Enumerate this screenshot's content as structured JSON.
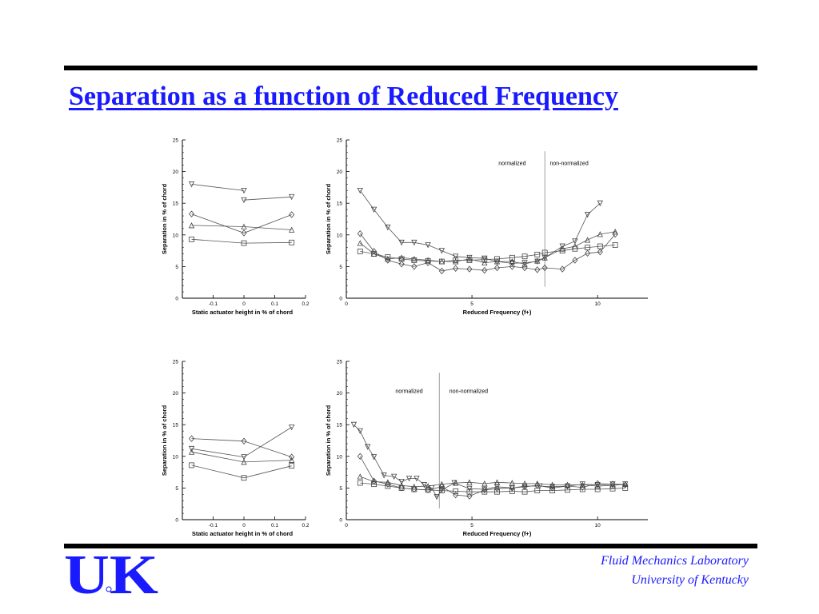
{
  "slide": {
    "title": "Separation as a function of Reduced Frequency",
    "footer_line1": "Fluid Mechanics Laboratory",
    "footer_line2": "University of Kentucky",
    "logo_text": "UK",
    "colors": {
      "title": "#1a1aff",
      "rule": "#000000",
      "logo": "#1a1aff"
    }
  },
  "chart_data": [
    {
      "id": "top-left",
      "type": "line",
      "xlabel": "Static actuator height in % of chord",
      "ylabel": "Separation in % of chord",
      "xlim": [
        -0.2,
        0.2
      ],
      "ylim": [
        0,
        25
      ],
      "xticks": [
        -0.1,
        0,
        0.1,
        0.2
      ],
      "yticks": [
        0,
        5,
        10,
        15,
        20,
        25
      ],
      "series": [
        {
          "marker": "triangle-down",
          "points": [
            [
              -0.17,
              18
            ],
            [
              0,
              17
            ]
          ]
        },
        {
          "marker": "triangle-down",
          "points": [
            [
              0,
              15.5
            ],
            [
              0.155,
              16
            ]
          ]
        },
        {
          "marker": "diamond",
          "points": [
            [
              -0.17,
              13.3
            ],
            [
              0,
              10.3
            ],
            [
              0.155,
              13.2
            ]
          ]
        },
        {
          "marker": "triangle-up",
          "points": [
            [
              -0.17,
              11.5
            ],
            [
              0,
              11.3
            ],
            [
              0.155,
              10.8
            ]
          ]
        },
        {
          "marker": "square",
          "points": [
            [
              -0.17,
              9.3
            ],
            [
              0,
              8.7
            ],
            [
              0.155,
              8.8
            ]
          ]
        }
      ]
    },
    {
      "id": "top-right",
      "type": "line",
      "xlabel": "Reduced Frequency (f+)",
      "ylabel": "Separation in % of chord",
      "xlim": [
        0,
        12
      ],
      "ylim": [
        0,
        25
      ],
      "xticks": [
        0,
        5,
        10
      ],
      "yticks": [
        0,
        5,
        10,
        15,
        20,
        25
      ],
      "annotations": [
        "normalized",
        "non-normalized"
      ],
      "divider_x": 7.9,
      "series": [
        {
          "marker": "triangle-down",
          "points": [
            [
              0.55,
              17
            ],
            [
              1.1,
              14
            ],
            [
              1.65,
              11.2
            ],
            [
              2.2,
              8.8
            ],
            [
              2.7,
              8.8
            ],
            [
              3.25,
              8.4
            ],
            [
              3.8,
              7.5
            ],
            [
              4.35,
              6.6
            ],
            [
              4.9,
              6.4
            ],
            [
              5.5,
              6.3
            ],
            [
              6.0,
              5.8
            ],
            [
              6.6,
              5.5
            ],
            [
              7.1,
              5.6
            ],
            [
              7.6,
              5.8
            ],
            [
              7.9,
              6.4
            ],
            [
              8.6,
              8.2
            ],
            [
              9.1,
              9.0
            ],
            [
              9.6,
              13.2
            ],
            [
              10.1,
              15
            ]
          ]
        },
        {
          "marker": "triangle-up",
          "points": [
            [
              0.55,
              8.7
            ],
            [
              1.1,
              7.0
            ],
            [
              1.65,
              6.2
            ],
            [
              2.2,
              6.4
            ],
            [
              2.7,
              6.2
            ],
            [
              3.25,
              6.0
            ],
            [
              3.8,
              5.8
            ],
            [
              4.35,
              5.8
            ],
            [
              4.9,
              6.2
            ],
            [
              5.5,
              5.6
            ],
            [
              6.0,
              5.8
            ],
            [
              6.6,
              5.8
            ],
            [
              7.1,
              5.4
            ],
            [
              7.6,
              5.9
            ],
            [
              7.9,
              6.4
            ],
            [
              8.6,
              7.8
            ],
            [
              9.1,
              8.2
            ],
            [
              9.6,
              9.2
            ],
            [
              10.1,
              10.1
            ],
            [
              10.7,
              10.5
            ]
          ]
        },
        {
          "marker": "diamond",
          "points": [
            [
              0.55,
              10.2
            ],
            [
              1.1,
              7.4
            ],
            [
              1.65,
              6.0
            ],
            [
              2.2,
              5.4
            ],
            [
              2.7,
              5.0
            ],
            [
              3.25,
              5.6
            ],
            [
              3.8,
              4.3
            ],
            [
              4.35,
              4.7
            ],
            [
              4.9,
              4.6
            ],
            [
              5.5,
              4.4
            ],
            [
              6.0,
              4.8
            ],
            [
              6.6,
              5.0
            ],
            [
              7.1,
              4.8
            ],
            [
              7.6,
              4.5
            ],
            [
              7.9,
              4.8
            ],
            [
              8.6,
              4.6
            ],
            [
              9.1,
              6.0
            ],
            [
              9.6,
              7.1
            ],
            [
              10.1,
              7.3
            ],
            [
              10.7,
              10.1
            ]
          ]
        },
        {
          "marker": "square",
          "points": [
            [
              0.55,
              7.4
            ],
            [
              1.1,
              7.0
            ],
            [
              1.65,
              6.5
            ],
            [
              2.2,
              6.2
            ],
            [
              2.7,
              6.0
            ],
            [
              3.25,
              5.9
            ],
            [
              3.8,
              5.8
            ],
            [
              4.35,
              6.0
            ],
            [
              4.9,
              6.0
            ],
            [
              5.5,
              6.1
            ],
            [
              6.0,
              6.2
            ],
            [
              6.6,
              6.4
            ],
            [
              7.1,
              6.6
            ],
            [
              7.6,
              6.9
            ],
            [
              7.9,
              7.2
            ],
            [
              8.6,
              7.5
            ],
            [
              9.1,
              7.8
            ],
            [
              9.6,
              8.0
            ],
            [
              10.1,
              8.2
            ],
            [
              10.7,
              8.4
            ]
          ]
        }
      ]
    },
    {
      "id": "bottom-left",
      "type": "line",
      "xlabel": "Static actuator height in % of chord",
      "ylabel": "Separation in % of chord",
      "xlim": [
        -0.2,
        0.2
      ],
      "ylim": [
        0,
        25
      ],
      "xticks": [
        -0.1,
        0,
        0.1,
        0.2
      ],
      "yticks": [
        0,
        5,
        10,
        15,
        20,
        25
      ],
      "series": [
        {
          "marker": "diamond",
          "points": [
            [
              -0.17,
              12.8
            ],
            [
              0,
              12.4
            ],
            [
              0.155,
              9.9
            ]
          ]
        },
        {
          "marker": "triangle-down",
          "points": [
            [
              -0.17,
              11.2
            ],
            [
              0,
              9.9
            ],
            [
              0.155,
              14.6
            ]
          ]
        },
        {
          "marker": "triangle-up",
          "points": [
            [
              -0.17,
              10.7
            ],
            [
              0,
              9.1
            ],
            [
              0.155,
              9.4
            ]
          ]
        },
        {
          "marker": "square",
          "points": [
            [
              -0.17,
              8.6
            ],
            [
              0,
              6.6
            ],
            [
              0.155,
              8.5
            ]
          ]
        }
      ]
    },
    {
      "id": "bottom-right",
      "type": "line",
      "xlabel": "Reduced Frequency (f+)",
      "ylabel": "Separation in % of chord",
      "xlim": [
        0,
        12
      ],
      "ylim": [
        0,
        25
      ],
      "xticks": [
        0,
        5,
        10
      ],
      "yticks": [
        0,
        5,
        10,
        15,
        20,
        25
      ],
      "annotations": [
        "normalized",
        "non-normalized"
      ],
      "divider_x": 3.7,
      "series": [
        {
          "marker": "triangle-down",
          "points": [
            [
              0.3,
              15
            ],
            [
              0.55,
              14
            ],
            [
              0.85,
              11.5
            ],
            [
              1.1,
              9.9
            ],
            [
              1.5,
              7.0
            ],
            [
              1.9,
              6.8
            ],
            [
              2.2,
              6.0
            ],
            [
              2.5,
              6.5
            ],
            [
              2.8,
              6.5
            ],
            [
              3.1,
              5.5
            ],
            [
              3.4,
              5.0
            ],
            [
              3.6,
              3.6
            ],
            [
              3.8,
              4.7
            ],
            [
              4.3,
              5.8
            ],
            [
              4.9,
              4.9
            ],
            [
              5.5,
              4.8
            ],
            [
              6.0,
              5.2
            ],
            [
              6.6,
              5.0
            ],
            [
              7.1,
              5.3
            ],
            [
              7.7,
              5.3
            ],
            [
              8.2,
              5.2
            ],
            [
              8.8,
              5.3
            ],
            [
              9.4,
              5.6
            ],
            [
              10.0,
              5.5
            ],
            [
              10.6,
              5.6
            ],
            [
              11.1,
              5.6
            ]
          ]
        },
        {
          "marker": "diamond",
          "points": [
            [
              0.55,
              10.0
            ],
            [
              1.1,
              6.1
            ],
            [
              1.65,
              5.6
            ],
            [
              2.2,
              5.0
            ],
            [
              2.7,
              4.8
            ],
            [
              3.25,
              4.7
            ],
            [
              3.8,
              5.2
            ],
            [
              4.35,
              3.9
            ],
            [
              4.9,
              3.7
            ],
            [
              5.5,
              4.7
            ],
            [
              6.0,
              4.9
            ],
            [
              6.6,
              5.0
            ],
            [
              7.1,
              5.2
            ],
            [
              7.6,
              5.4
            ],
            [
              8.2,
              5.0
            ],
            [
              8.8,
              5.3
            ],
            [
              9.4,
              5.1
            ],
            [
              10.0,
              5.7
            ],
            [
              10.6,
              5.6
            ],
            [
              11.1,
              5.5
            ]
          ]
        },
        {
          "marker": "triangle-up",
          "points": [
            [
              0.55,
              6.8
            ],
            [
              1.1,
              6.0
            ],
            [
              1.65,
              5.9
            ],
            [
              2.2,
              5.4
            ],
            [
              2.7,
              5.2
            ],
            [
              3.25,
              5.3
            ],
            [
              3.8,
              5.6
            ],
            [
              4.35,
              5.8
            ],
            [
              4.9,
              5.9
            ],
            [
              5.5,
              5.7
            ],
            [
              6.0,
              5.9
            ],
            [
              6.6,
              5.8
            ],
            [
              7.1,
              5.7
            ],
            [
              7.6,
              5.7
            ],
            [
              8.2,
              5.5
            ],
            [
              8.8,
              5.5
            ],
            [
              9.4,
              5.5
            ],
            [
              10.0,
              5.3
            ],
            [
              10.6,
              5.4
            ],
            [
              11.1,
              5.6
            ]
          ]
        },
        {
          "marker": "square",
          "points": [
            [
              0.55,
              5.8
            ],
            [
              1.1,
              5.6
            ],
            [
              1.65,
              5.3
            ],
            [
              2.2,
              5.0
            ],
            [
              2.7,
              4.8
            ],
            [
              3.25,
              4.7
            ],
            [
              3.8,
              4.6
            ],
            [
              4.35,
              4.5
            ],
            [
              4.9,
              4.4
            ],
            [
              5.5,
              4.4
            ],
            [
              6.0,
              4.4
            ],
            [
              6.6,
              4.5
            ],
            [
              7.1,
              4.4
            ],
            [
              7.6,
              4.6
            ],
            [
              8.2,
              4.6
            ],
            [
              8.8,
              4.7
            ],
            [
              9.4,
              4.8
            ],
            [
              10.0,
              4.8
            ],
            [
              10.6,
              4.9
            ],
            [
              11.1,
              5.0
            ]
          ]
        }
      ]
    }
  ]
}
